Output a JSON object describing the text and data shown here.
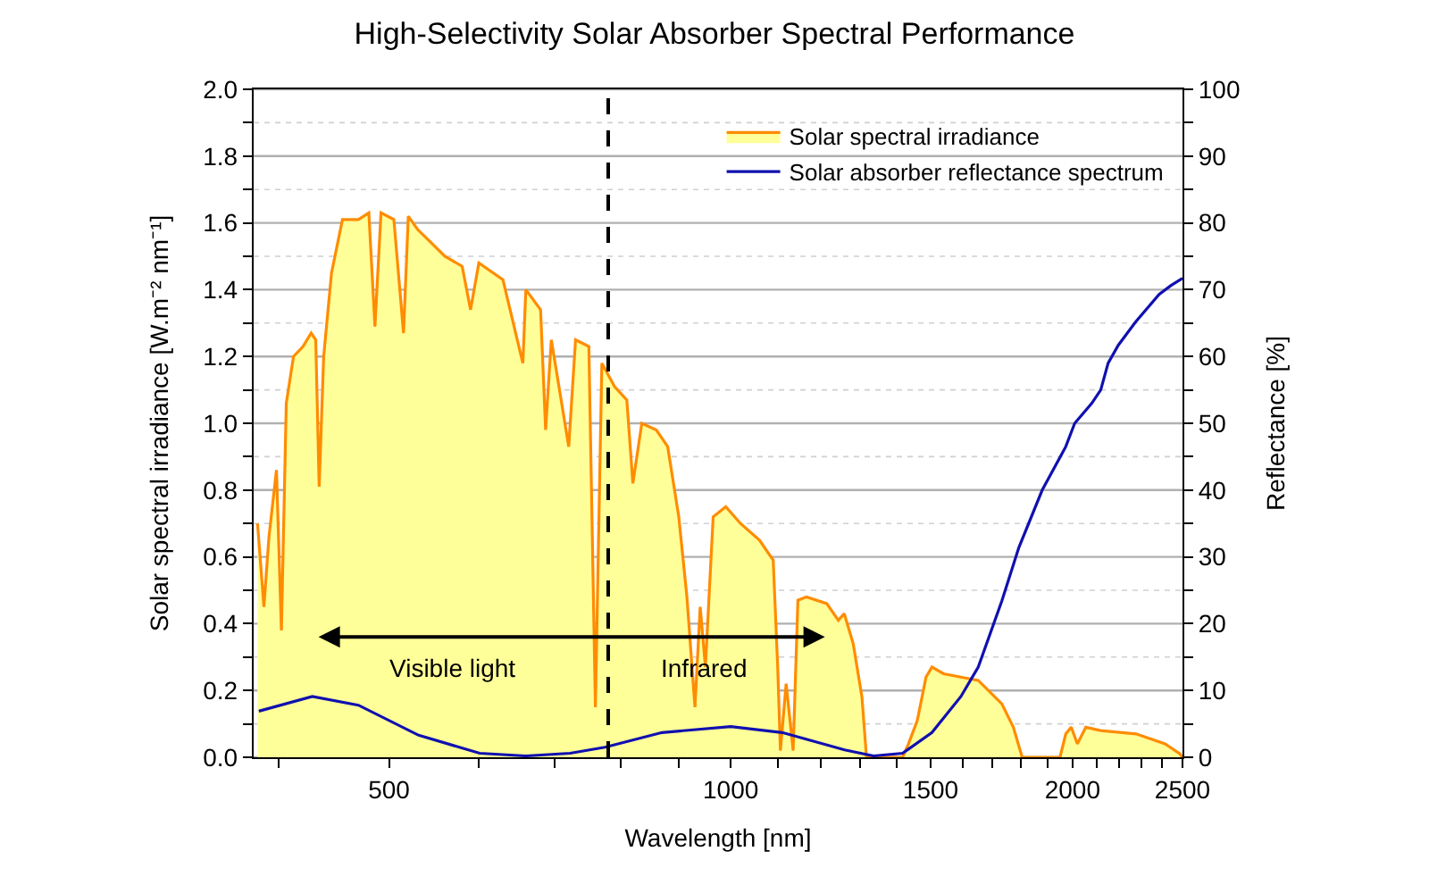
{
  "chart_data": {
    "type": "area",
    "title": "High-Selectivity Solar Absorber Spectral Performance",
    "xlabel": "Wavelength [nm]",
    "ylabel": "Solar spectral irradiance [W.m⁻² nm⁻¹]",
    "y2label": "Reflectance [%]",
    "log": "x",
    "xlim": [
      380,
      2500
    ],
    "xticks": [
      {
        "value": 400,
        "label": null
      },
      500,
      {
        "value": 600,
        "label": null
      },
      {
        "value": 700,
        "label": null
      },
      {
        "value": 800,
        "label": null
      },
      {
        "value": 900,
        "label": null
      },
      1000,
      {
        "value": 1100,
        "label": null
      },
      {
        "value": 1200,
        "label": null
      },
      {
        "value": 1300,
        "label": null
      },
      {
        "value": 1400,
        "label": null
      },
      1500,
      {
        "value": 1600,
        "label": null
      },
      {
        "value": 1700,
        "label": null
      },
      {
        "value": 1800,
        "label": null
      },
      {
        "value": 1900,
        "label": null
      },
      2000,
      {
        "value": 2100,
        "label": null
      },
      {
        "value": 2200,
        "label": null
      },
      {
        "value": 2300,
        "label": null
      },
      {
        "value": 2400,
        "label": null
      },
      2500
    ],
    "ylim": [
      0,
      2
    ],
    "yticks": [
      {
        "value": 0,
        "label": "0.0"
      },
      {
        "value": 0.1,
        "label": null
      },
      {
        "value": 0.2,
        "label": "0.2"
      },
      {
        "value": 0.3,
        "label": null
      },
      {
        "value": 0.4,
        "label": "0.4"
      },
      {
        "value": 0.5,
        "label": null
      },
      {
        "value": 0.6,
        "label": "0.6"
      },
      {
        "value": 0.7,
        "label": null
      },
      {
        "value": 0.8,
        "label": "0.8"
      },
      {
        "value": 0.9,
        "label": null
      },
      {
        "value": 1.0,
        "label": "1.0"
      },
      {
        "value": 1.1,
        "label": null
      },
      {
        "value": 1.2,
        "label": "1.2"
      },
      {
        "value": 1.3,
        "label": null
      },
      {
        "value": 1.4,
        "label": "1.4"
      },
      {
        "value": 1.5,
        "label": null
      },
      {
        "value": 1.6,
        "label": "1.6"
      },
      {
        "value": 1.7,
        "label": null
      },
      {
        "value": 1.8,
        "label": "1.8"
      },
      {
        "value": 1.9,
        "label": null
      },
      {
        "value": 2.0,
        "label": "2.0"
      }
    ],
    "y2lim": [
      0,
      100
    ],
    "y2ticks": [
      0,
      {
        "value": 5,
        "label": null
      },
      10,
      {
        "value": 15,
        "label": null
      },
      20,
      {
        "value": 25,
        "label": null
      },
      30,
      {
        "value": 35,
        "label": null
      },
      40,
      {
        "value": 45,
        "label": null
      },
      50,
      {
        "value": 55,
        "label": null
      },
      60,
      {
        "value": 65,
        "label": null
      },
      70,
      {
        "value": 75,
        "label": null
      },
      80,
      {
        "value": 85,
        "label": null
      },
      90,
      {
        "value": 95,
        "label": null
      },
      100
    ],
    "grid": "y",
    "legend": "top right",
    "ref_lines": [
      {
        "axis": "x",
        "value": 780,
        "color": "#000000",
        "line_style": "dashed"
      }
    ],
    "annotations": [
      "Visible light",
      "Infrared"
    ],
    "series": [
      {
        "name": "Solar spectral irradiance",
        "color": "#ff8c00",
        "x": [
          383,
          388,
          392,
          398,
          402,
          406,
          412,
          420,
          427,
          431,
          434,
          438,
          445,
          455,
          470,
          480,
          486,
          492,
          505,
          515,
          520,
          530,
          545,
          560,
          580,
          590,
          600,
          630,
          656,
          660,
          680,
          687,
          695,
          720,
          730,
          750,
          760,
          770,
          790,
          810,
          820,
          835,
          860,
          880,
          900,
          915,
          930,
          940,
          950,
          965,
          990,
          1020,
          1060,
          1090,
          1100,
          1106,
          1119,
          1135,
          1146,
          1166,
          1215,
          1244,
          1259,
          1282,
          1305,
          1317,
          1417,
          1434,
          1460,
          1486,
          1504,
          1540,
          1595,
          1652,
          1733,
          1774,
          1806,
          1950,
          1973,
          1995,
          2020,
          2055,
          2118,
          2275,
          2413,
          2487,
          2500
        ],
        "values": [
          0.7,
          0.45,
          0.66,
          0.86,
          0.38,
          1.06,
          1.2,
          1.23,
          1.27,
          1.25,
          0.81,
          1.2,
          1.45,
          1.61,
          1.61,
          1.63,
          1.29,
          1.63,
          1.61,
          1.27,
          1.62,
          1.58,
          1.54,
          1.5,
          1.47,
          1.34,
          1.48,
          1.43,
          1.18,
          1.4,
          1.34,
          0.98,
          1.25,
          0.93,
          1.25,
          1.23,
          0.15,
          1.18,
          1.11,
          1.07,
          0.82,
          1.0,
          0.98,
          0.93,
          0.72,
          0.48,
          0.15,
          0.45,
          0.27,
          0.72,
          0.75,
          0.7,
          0.65,
          0.59,
          0.27,
          0.02,
          0.22,
          0.02,
          0.47,
          0.48,
          0.46,
          0.41,
          0.43,
          0.34,
          0.18,
          0.0,
          0.0,
          0.04,
          0.11,
          0.24,
          0.27,
          0.25,
          0.24,
          0.23,
          0.16,
          0.09,
          0.0,
          0.0,
          0.07,
          0.09,
          0.04,
          0.09,
          0.08,
          0.07,
          0.04,
          0.01,
          0.0
        ]
      },
      {
        "name": "Solar absorber reflectance spectrum",
        "type": "line",
        "axis": "y2",
        "color": "#1010b0",
        "x": [
          384,
          428,
          470,
          531,
          601,
          660,
          722,
          775,
          870,
          1000,
          1110,
          1260,
          1336,
          1417,
          1504,
          1595,
          1652,
          1733,
          1794,
          1881,
          1973,
          2009,
          2080,
          2118,
          2150,
          2195,
          2274,
          2384,
          2441,
          2500
        ],
        "values": [
          6.9,
          9.1,
          7.8,
          3.3,
          0.6,
          0.2,
          0.6,
          1.5,
          3.7,
          4.6,
          3.7,
          1.1,
          0.2,
          0.6,
          3.7,
          9.1,
          13.5,
          23.4,
          31.4,
          40,
          46.5,
          50,
          53,
          55,
          59,
          61.7,
          65.2,
          69.3,
          70.6,
          71.7
        ]
      }
    ]
  }
}
